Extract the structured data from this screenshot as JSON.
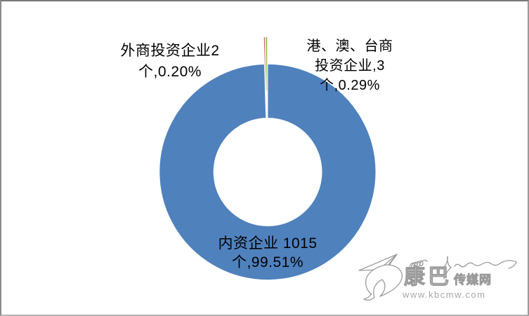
{
  "page": {
    "background": "#ffffff",
    "border_color": "#808080"
  },
  "chart_data": {
    "type": "pie",
    "subtype": "doughnut",
    "title": "",
    "legend_position": "none",
    "hole_ratio": 0.5,
    "slices": [
      {
        "key": "domestic",
        "label": "内资企业",
        "value": 1015,
        "percent": 99.51,
        "color": "#4F81BD",
        "exploded": false
      },
      {
        "key": "foreign",
        "label": "外商投资企业",
        "value": 2,
        "percent": 0.2,
        "color": "#C0504D",
        "exploded": true
      },
      {
        "key": "hmt",
        "label": "港、澳、台商投资企业",
        "value": 3,
        "percent": 0.29,
        "color": "#9BBB59",
        "exploded": true
      }
    ]
  },
  "data_labels": {
    "foreign": {
      "line1": "外商投资企业2",
      "line2": "个,0.20%"
    },
    "hmt": {
      "line1": "港、澳、台商",
      "line2": "投资企业,3",
      "line3": "个,0.29%"
    },
    "domestic": {
      "line1": "内资企业 1015",
      "line2": "个,99.51%"
    }
  },
  "watermark": {
    "brand_large": "康巴",
    "brand_small": "传媒网",
    "url": "www.kbcmw.com",
    "color": "#9b9b9b"
  }
}
